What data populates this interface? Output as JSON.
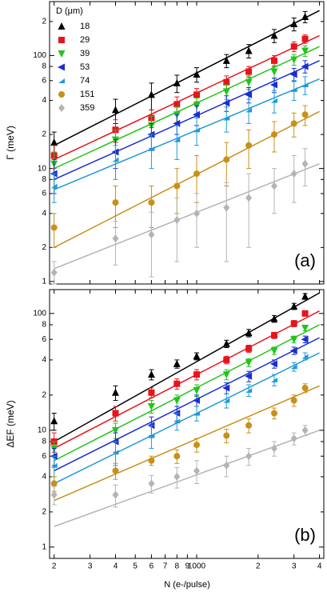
{
  "chart_data": [
    {
      "type": "scatter",
      "ylabel": "Γ (meV)",
      "panel_label": "(a)",
      "legend_title": "D (μm)",
      "log_x": true,
      "log_y": true,
      "xlim": [
        190,
        4200
      ],
      "ylim": [
        0.95,
        300
      ],
      "yticks": [
        1,
        2,
        4,
        6,
        8,
        10,
        {
          "value": 20,
          "label": "2"
        },
        {
          "value": 40,
          "label": "4"
        },
        {
          "value": 60,
          "label": "6"
        },
        {
          "value": 80,
          "label": "8"
        },
        100,
        {
          "value": 200,
          "label": "2"
        }
      ],
      "x": [
        200,
        400,
        600,
        800,
        1000,
        1400,
        1800,
        2400,
        3000,
        3400
      ],
      "fit_x": [
        200,
        4000
      ],
      "series": [
        {
          "name": "18",
          "color": "#000000",
          "marker": "triangle-up",
          "values": [
            17,
            33,
            45,
            57,
            68,
            90,
            110,
            150,
            190,
            220
          ],
          "errors": [
            4,
            8,
            12,
            10,
            10,
            12,
            15,
            20,
            25,
            25
          ],
          "fit": [
            16,
            250
          ]
        },
        {
          "name": "29",
          "color": "#e8141c",
          "marker": "square",
          "values": [
            13,
            22,
            28,
            37,
            45,
            58,
            72,
            90,
            120,
            140
          ],
          "errors": [
            3,
            5,
            5,
            6,
            6,
            8,
            8,
            10,
            12,
            12
          ],
          "fit": [
            12,
            150
          ]
        },
        {
          "name": "39",
          "color": "#22c41c",
          "marker": "triangle-down",
          "values": [
            11,
            18,
            24,
            30,
            36,
            48,
            58,
            72,
            92,
            110
          ],
          "errors": [
            3,
            4,
            5,
            5,
            6,
            7,
            8,
            9,
            10,
            12
          ],
          "fit": [
            10,
            120
          ]
        },
        {
          "name": "53",
          "color": "#1a2fd0",
          "marker": "triangle-left",
          "values": [
            9,
            14,
            20,
            25,
            30,
            38,
            45,
            55,
            68,
            80
          ],
          "errors": [
            3,
            4,
            5,
            5,
            6,
            6,
            7,
            8,
            9,
            10
          ],
          "fit": [
            8,
            90
          ]
        },
        {
          "name": "74",
          "color": "#1e9ad6",
          "marker": "wedge",
          "values": [
            7,
            12,
            15,
            18,
            22,
            28,
            33,
            40,
            50,
            55
          ],
          "errors": [
            2,
            4,
            5,
            6,
            6,
            7,
            8,
            9,
            10,
            10
          ],
          "fit": [
            6.5,
            62
          ]
        },
        {
          "name": "151",
          "color": "#c8901a",
          "marker": "circle",
          "values": [
            3,
            5,
            5,
            7,
            9,
            12,
            16,
            20,
            25,
            30
          ],
          "errors": [
            1,
            2,
            2,
            3,
            4,
            5,
            6,
            6,
            6,
            6
          ],
          "fit": [
            2,
            32
          ]
        },
        {
          "name": "359",
          "color": "#b4b4b4",
          "marker": "diamond",
          "values": [
            1.2,
            2.4,
            2.6,
            3.5,
            4,
            4.5,
            5.5,
            7,
            9,
            11
          ],
          "errors": [
            0.3,
            1,
            1.5,
            2,
            2,
            3,
            3.5,
            3,
            4,
            4
          ],
          "fit": [
            1.3,
            11
          ]
        }
      ]
    },
    {
      "type": "scatter",
      "ylabel": "ΔEF (meV)",
      "panel_label": "(b)",
      "xlabel": "N (e-/pulse)",
      "log_x": true,
      "log_y": true,
      "xlim": [
        190,
        4200
      ],
      "ylim": [
        0.8,
        160
      ],
      "xticks": [
        {
          "value": 200,
          "label": "2"
        },
        {
          "value": 300,
          "label": "3"
        },
        {
          "value": 400,
          "label": "4"
        },
        {
          "value": 500,
          "label": "5"
        },
        {
          "value": 600,
          "label": "6"
        },
        {
          "value": 700,
          "label": "7"
        },
        {
          "value": 800,
          "label": "8"
        },
        {
          "value": 900,
          "label": "9"
        },
        1000,
        {
          "value": 2000,
          "label": "2"
        },
        {
          "value": 3000,
          "label": "3"
        },
        {
          "value": 4000,
          "label": "4"
        }
      ],
      "yticks": [
        1,
        2,
        4,
        6,
        8,
        10,
        {
          "value": 20,
          "label": "2"
        },
        {
          "value": 40,
          "label": "4"
        },
        {
          "value": 60,
          "label": "6"
        },
        {
          "value": 80,
          "label": "8"
        },
        100
      ],
      "x": [
        200,
        400,
        600,
        800,
        1000,
        1400,
        1800,
        2400,
        3000,
        3400
      ],
      "fit_x": [
        200,
        4000
      ],
      "series": [
        {
          "color": "#000000",
          "marker": "triangle-up",
          "values": [
            12,
            21,
            30,
            37,
            43,
            55,
            68,
            90,
            115,
            140
          ],
          "errors": [
            2,
            3,
            3,
            3,
            3,
            4,
            5,
            6,
            7,
            8
          ],
          "fit": [
            8,
            150
          ]
        },
        {
          "color": "#e8141c",
          "marker": "square",
          "values": [
            8,
            14,
            21,
            25,
            30,
            40,
            50,
            65,
            82,
            100
          ],
          "errors": [
            1.5,
            2,
            2,
            2.5,
            3,
            3,
            3.5,
            4,
            5,
            5
          ],
          "fit": [
            7,
            105
          ]
        },
        {
          "color": "#22c41c",
          "marker": "triangle-down",
          "values": [
            7,
            10,
            16,
            18,
            22,
            30,
            38,
            48,
            60,
            75
          ],
          "errors": [
            1,
            1.5,
            2,
            2,
            2.5,
            3,
            3,
            3.5,
            4,
            4
          ],
          "fit": [
            5.5,
            80
          ]
        },
        {
          "color": "#1a2fd0",
          "marker": "triangle-left",
          "values": [
            6,
            8,
            11,
            14,
            18,
            23,
            29,
            37,
            48,
            60
          ],
          "errors": [
            1,
            1.5,
            2,
            2,
            2,
            2.5,
            3,
            3,
            3.5,
            4
          ],
          "fit": [
            4.5,
            62
          ]
        },
        {
          "color": "#1e9ad6",
          "marker": "wedge",
          "values": [
            5,
            6.5,
            9,
            12,
            14,
            18,
            22,
            27,
            35,
            43
          ],
          "errors": [
            1,
            1.5,
            2,
            2,
            2,
            2.5,
            2.5,
            3,
            3,
            3
          ],
          "fit": [
            3.5,
            46
          ]
        },
        {
          "color": "#c8901a",
          "marker": "circle",
          "values": [
            3.5,
            4.5,
            5.5,
            6,
            7.5,
            9,
            11,
            14,
            18,
            23
          ],
          "errors": [
            0.5,
            0.7,
            0.5,
            0.8,
            1,
            1.2,
            1.5,
            1.5,
            2,
            2
          ],
          "fit": [
            2.5,
            24
          ]
        },
        {
          "color": "#b4b4b4",
          "marker": "diamond",
          "values": [
            2.8,
            2.8,
            3.5,
            4,
            4.5,
            5,
            6,
            7,
            8.5,
            10
          ],
          "errors": [
            0.5,
            0.6,
            0.6,
            0.8,
            1,
            1,
            1,
            1,
            1,
            1
          ],
          "fit": [
            1.5,
            10
          ]
        }
      ]
    }
  ]
}
